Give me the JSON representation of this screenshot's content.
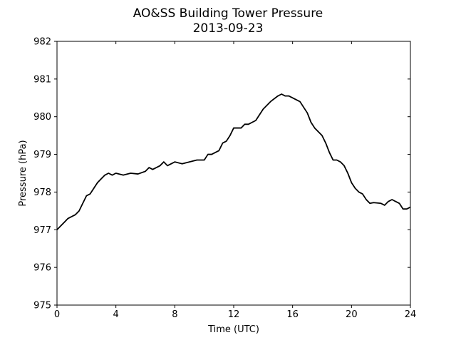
{
  "chart_data": {
    "type": "line",
    "title": "AO&SS Building Tower Pressure",
    "subtitle": "2013-09-23",
    "xlabel": "Time (UTC)",
    "ylabel": "Pressure (hPa)",
    "xlim": [
      0,
      24
    ],
    "ylim": [
      975,
      982
    ],
    "xticks": [
      0,
      4,
      8,
      12,
      16,
      20,
      24
    ],
    "yticks": [
      975,
      976,
      977,
      978,
      979,
      980,
      981,
      982
    ],
    "xtick_labels": [
      "0",
      "4",
      "8",
      "12",
      "16",
      "20",
      "24"
    ],
    "ytick_labels": [
      "975",
      "976",
      "977",
      "978",
      "979",
      "980",
      "981",
      "982"
    ],
    "grid": false,
    "legend": "none",
    "line_color": "#000000",
    "series": [
      {
        "x": [
          0,
          0.25,
          0.5,
          0.75,
          1.0,
          1.25,
          1.5,
          1.75,
          2.0,
          2.25,
          2.5,
          2.75,
          3.0,
          3.25,
          3.5,
          3.75,
          4.0,
          4.5,
          5.0,
          5.5,
          6.0,
          6.25,
          6.5,
          7.0,
          7.25,
          7.5,
          8.0,
          8.5,
          9.0,
          9.5,
          10.0,
          10.25,
          10.5,
          11.0,
          11.25,
          11.5,
          11.75,
          12.0,
          12.25,
          12.5,
          12.75,
          13.0,
          13.5,
          14.0,
          14.5,
          15.0,
          15.25,
          15.5,
          15.75,
          16.0,
          16.5,
          17.0,
          17.25,
          17.5,
          18.0,
          18.25,
          18.5,
          18.75,
          19.0,
          19.25,
          19.5,
          19.75,
          20.0,
          20.25,
          20.5,
          20.75,
          21.0,
          21.25,
          21.5,
          22.0,
          22.25,
          22.5,
          22.75,
          23.0,
          23.25,
          23.5,
          23.75,
          24.0
        ],
        "y": [
          977.0,
          977.1,
          977.2,
          977.3,
          977.35,
          977.4,
          977.5,
          977.7,
          977.9,
          977.95,
          978.1,
          978.25,
          978.35,
          978.45,
          978.5,
          978.45,
          978.5,
          978.45,
          978.5,
          978.48,
          978.55,
          978.65,
          978.6,
          978.7,
          978.8,
          978.7,
          978.8,
          978.75,
          978.8,
          978.85,
          978.85,
          979.0,
          979.0,
          979.1,
          979.3,
          979.35,
          979.5,
          979.7,
          979.7,
          979.7,
          979.8,
          979.8,
          979.9,
          980.2,
          980.4,
          980.55,
          980.6,
          980.55,
          980.55,
          980.5,
          980.4,
          980.1,
          979.85,
          979.7,
          979.5,
          979.3,
          979.05,
          978.85,
          978.85,
          978.8,
          978.7,
          978.5,
          978.25,
          978.1,
          978.0,
          977.95,
          977.8,
          977.7,
          977.72,
          977.7,
          977.65,
          977.75,
          977.8,
          977.75,
          977.7,
          977.55,
          977.55,
          977.6
        ]
      }
    ]
  }
}
